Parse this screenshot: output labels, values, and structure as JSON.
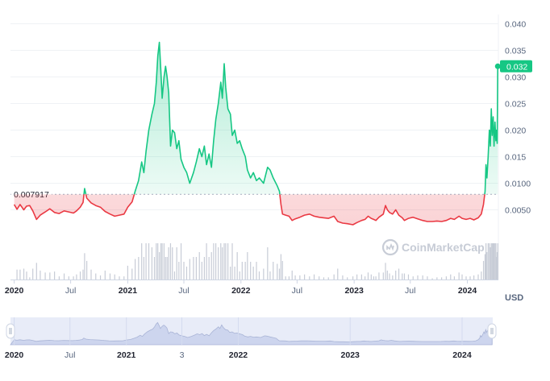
{
  "chart_data": {
    "type": "line",
    "reference_value_label": "0.007917",
    "reference_value": 0.007917,
    "current_price_label": "0.032",
    "current_price": 0.032,
    "currency_label": "USD",
    "watermark": "CoinMarketCap",
    "ylim": [
      0,
      0.04
    ],
    "y_ticks": [
      "0.040",
      "0.035",
      "0.030",
      "0.025",
      "0.020",
      "0.015",
      "0.0100",
      "0.0050"
    ],
    "y_tick_values": [
      0.04,
      0.035,
      0.03,
      0.025,
      0.02,
      0.015,
      0.01,
      0.005
    ],
    "x_ticks": [
      {
        "label": "2020",
        "date": "2020-01-01",
        "major": true
      },
      {
        "label": "Jul",
        "date": "2020-07-01",
        "major": false
      },
      {
        "label": "2021",
        "date": "2021-01-01",
        "major": true
      },
      {
        "label": "Jul",
        "date": "2021-07-01",
        "major": false
      },
      {
        "label": "2022",
        "date": "2022-01-01",
        "major": true
      },
      {
        "label": "Jul",
        "date": "2022-07-01",
        "major": false
      },
      {
        "label": "2023",
        "date": "2023-01-01",
        "major": true
      },
      {
        "label": "Jul",
        "date": "2023-07-01",
        "major": false
      },
      {
        "label": "2024",
        "date": "2024-01-01",
        "major": true
      }
    ],
    "navigator_ticks": [
      {
        "label": "2020",
        "date": "2020-01-01",
        "major": true
      },
      {
        "label": "Jul",
        "date": "2020-07-01",
        "major": false
      },
      {
        "label": "2021",
        "date": "2021-01-01",
        "major": true
      },
      {
        "label": "3",
        "date": "2021-07-01",
        "major": false
      },
      {
        "label": "2022",
        "date": "2022-01-01",
        "major": true
      },
      {
        "label": "2023",
        "date": "2023-01-01",
        "major": true
      },
      {
        "label": "2024",
        "date": "2024-01-01",
        "major": true
      }
    ],
    "x_range": [
      "2019-12-20",
      "2024-04-10"
    ],
    "colors": {
      "up": "#16c784",
      "down": "#ea3943",
      "grid": "#eff2f5",
      "ref_line": "#a6b0c3",
      "volume": "#c7ccd6"
    },
    "series": [
      {
        "points": [
          [
            "2020-01-01",
            0.006
          ],
          [
            "2020-01-10",
            0.0051
          ],
          [
            "2020-01-20",
            0.006
          ],
          [
            "2020-02-01",
            0.005
          ],
          [
            "2020-02-10",
            0.0057
          ],
          [
            "2020-02-20",
            0.0058
          ],
          [
            "2020-03-01",
            0.0048
          ],
          [
            "2020-03-13",
            0.0032
          ],
          [
            "2020-03-25",
            0.004
          ],
          [
            "2020-04-10",
            0.0046
          ],
          [
            "2020-04-25",
            0.0052
          ],
          [
            "2020-05-10",
            0.0045
          ],
          [
            "2020-05-25",
            0.0043
          ],
          [
            "2020-06-10",
            0.0048
          ],
          [
            "2020-06-25",
            0.0046
          ],
          [
            "2020-07-10",
            0.0044
          ],
          [
            "2020-07-20",
            0.0048
          ],
          [
            "2020-08-01",
            0.0055
          ],
          [
            "2020-08-10",
            0.0064
          ],
          [
            "2020-08-15",
            0.009
          ],
          [
            "2020-08-22",
            0.0072
          ],
          [
            "2020-09-05",
            0.0063
          ],
          [
            "2020-09-20",
            0.0058
          ],
          [
            "2020-10-05",
            0.0055
          ],
          [
            "2020-10-20",
            0.0047
          ],
          [
            "2020-11-05",
            0.0042
          ],
          [
            "2020-11-20",
            0.0038
          ],
          [
            "2020-12-05",
            0.004
          ],
          [
            "2020-12-20",
            0.0042
          ],
          [
            "2021-01-01",
            0.0055
          ],
          [
            "2021-01-15",
            0.0065
          ],
          [
            "2021-01-25",
            0.0085
          ],
          [
            "2021-02-05",
            0.0105
          ],
          [
            "2021-02-15",
            0.014
          ],
          [
            "2021-02-22",
            0.012
          ],
          [
            "2021-03-01",
            0.016
          ],
          [
            "2021-03-10",
            0.02
          ],
          [
            "2021-03-20",
            0.023
          ],
          [
            "2021-03-28",
            0.025
          ],
          [
            "2021-04-03",
            0.029
          ],
          [
            "2021-04-08",
            0.034
          ],
          [
            "2021-04-13",
            0.0365
          ],
          [
            "2021-04-18",
            0.031
          ],
          [
            "2021-04-22",
            0.026
          ],
          [
            "2021-04-28",
            0.03
          ],
          [
            "2021-05-03",
            0.032
          ],
          [
            "2021-05-08",
            0.03
          ],
          [
            "2021-05-13",
            0.027
          ],
          [
            "2021-05-19",
            0.017
          ],
          [
            "2021-05-25",
            0.02
          ],
          [
            "2021-06-01",
            0.0195
          ],
          [
            "2021-06-08",
            0.0165
          ],
          [
            "2021-06-15",
            0.018
          ],
          [
            "2021-06-22",
            0.0145
          ],
          [
            "2021-07-01",
            0.013
          ],
          [
            "2021-07-10",
            0.012
          ],
          [
            "2021-07-20",
            0.01
          ],
          [
            "2021-08-01",
            0.012
          ],
          [
            "2021-08-10",
            0.014
          ],
          [
            "2021-08-20",
            0.0165
          ],
          [
            "2021-08-28",
            0.015
          ],
          [
            "2021-09-05",
            0.017
          ],
          [
            "2021-09-12",
            0.0135
          ],
          [
            "2021-09-20",
            0.0155
          ],
          [
            "2021-09-28",
            0.013
          ],
          [
            "2021-10-05",
            0.018
          ],
          [
            "2021-10-12",
            0.022
          ],
          [
            "2021-10-20",
            0.025
          ],
          [
            "2021-10-28",
            0.029
          ],
          [
            "2021-11-02",
            0.026
          ],
          [
            "2021-11-08",
            0.0325
          ],
          [
            "2021-11-13",
            0.028
          ],
          [
            "2021-11-20",
            0.024
          ],
          [
            "2021-11-28",
            0.023
          ],
          [
            "2021-12-04",
            0.019
          ],
          [
            "2021-12-12",
            0.02
          ],
          [
            "2021-12-20",
            0.0175
          ],
          [
            "2021-12-28",
            0.018
          ],
          [
            "2022-01-05",
            0.0165
          ],
          [
            "2022-01-15",
            0.015
          ],
          [
            "2022-01-22",
            0.0125
          ],
          [
            "2022-02-01",
            0.011
          ],
          [
            "2022-02-10",
            0.012
          ],
          [
            "2022-02-20",
            0.0105
          ],
          [
            "2022-03-01",
            0.011
          ],
          [
            "2022-03-15",
            0.01
          ],
          [
            "2022-03-28",
            0.013
          ],
          [
            "2022-04-05",
            0.0125
          ],
          [
            "2022-04-15",
            0.011
          ],
          [
            "2022-04-28",
            0.0095
          ],
          [
            "2022-05-05",
            0.0085
          ],
          [
            "2022-05-10",
            0.006
          ],
          [
            "2022-05-15",
            0.0042
          ],
          [
            "2022-05-25",
            0.004
          ],
          [
            "2022-06-05",
            0.0038
          ],
          [
            "2022-06-15",
            0.003
          ],
          [
            "2022-06-25",
            0.0033
          ],
          [
            "2022-07-10",
            0.0036
          ],
          [
            "2022-07-25",
            0.004
          ],
          [
            "2022-08-10",
            0.0042
          ],
          [
            "2022-08-25",
            0.0038
          ],
          [
            "2022-09-10",
            0.0036
          ],
          [
            "2022-09-25",
            0.0035
          ],
          [
            "2022-10-10",
            0.0034
          ],
          [
            "2022-10-28",
            0.0038
          ],
          [
            "2022-11-09",
            0.0028
          ],
          [
            "2022-11-25",
            0.0025
          ],
          [
            "2022-12-10",
            0.0024
          ],
          [
            "2022-12-28",
            0.0022
          ],
          [
            "2023-01-10",
            0.0026
          ],
          [
            "2023-01-25",
            0.003
          ],
          [
            "2023-02-05",
            0.0032
          ],
          [
            "2023-02-15",
            0.0038
          ],
          [
            "2023-02-25",
            0.0034
          ],
          [
            "2023-03-05",
            0.0032
          ],
          [
            "2023-03-12",
            0.003
          ],
          [
            "2023-03-22",
            0.0036
          ],
          [
            "2023-04-05",
            0.0042
          ],
          [
            "2023-04-12",
            0.0058
          ],
          [
            "2023-04-18",
            0.005
          ],
          [
            "2023-04-25",
            0.0045
          ],
          [
            "2023-05-05",
            0.0042
          ],
          [
            "2023-05-15",
            0.005
          ],
          [
            "2023-05-25",
            0.004
          ],
          [
            "2023-06-05",
            0.0035
          ],
          [
            "2023-06-12",
            0.003
          ],
          [
            "2023-06-25",
            0.0034
          ],
          [
            "2023-07-10",
            0.0036
          ],
          [
            "2023-07-25",
            0.0033
          ],
          [
            "2023-08-10",
            0.003
          ],
          [
            "2023-08-25",
            0.0028
          ],
          [
            "2023-09-10",
            0.0028
          ],
          [
            "2023-09-25",
            0.0029
          ],
          [
            "2023-10-10",
            0.0028
          ],
          [
            "2023-10-25",
            0.003
          ],
          [
            "2023-11-08",
            0.0034
          ],
          [
            "2023-11-20",
            0.0032
          ],
          [
            "2023-12-05",
            0.0038
          ],
          [
            "2023-12-15",
            0.0034
          ],
          [
            "2023-12-28",
            0.0032
          ],
          [
            "2024-01-10",
            0.0034
          ],
          [
            "2024-01-22",
            0.0031
          ],
          [
            "2024-02-05",
            0.0035
          ],
          [
            "2024-02-15",
            0.0042
          ],
          [
            "2024-02-22",
            0.006
          ],
          [
            "2024-02-27",
            0.0085
          ],
          [
            "2024-03-01",
            0.0135
          ],
          [
            "2024-03-04",
            0.011
          ],
          [
            "2024-03-08",
            0.015
          ],
          [
            "2024-03-12",
            0.02
          ],
          [
            "2024-03-15",
            0.017
          ],
          [
            "2024-03-18",
            0.024
          ],
          [
            "2024-03-21",
            0.019
          ],
          [
            "2024-03-24",
            0.0225
          ],
          [
            "2024-03-27",
            0.017
          ],
          [
            "2024-03-30",
            0.0215
          ],
          [
            "2024-04-02",
            0.018
          ],
          [
            "2024-04-04",
            0.02
          ],
          [
            "2024-04-06",
            0.0175
          ],
          [
            "2024-04-08",
            0.032
          ]
        ]
      }
    ]
  }
}
